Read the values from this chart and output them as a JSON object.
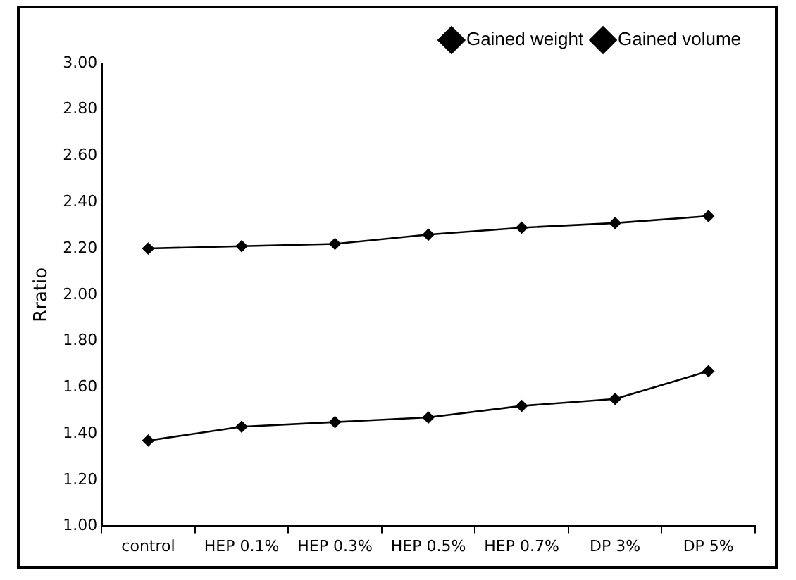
{
  "chart_data": {
    "type": "line",
    "ylabel": "Rratio",
    "categories": [
      "control",
      "HEP 0.1%",
      "HEP 0.3%",
      "HEP 0.5%",
      "HEP 0.7%",
      "DP 3%",
      "DP 5%"
    ],
    "series": [
      {
        "name": "Gained weight",
        "color": "#000000",
        "values": [
          2.2,
          2.21,
          2.22,
          2.26,
          2.29,
          2.31,
          2.34
        ]
      },
      {
        "name": "Gained volume",
        "color": "#000000",
        "values": [
          1.37,
          1.43,
          1.45,
          1.47,
          1.52,
          1.55,
          1.67
        ]
      }
    ],
    "ylim": [
      1,
      3
    ],
    "yticks": [
      {
        "value": 1,
        "label": "1.00"
      },
      {
        "value": 1.2,
        "label": "1.20"
      },
      {
        "value": 1.4,
        "label": "1.40"
      },
      {
        "value": 1.6,
        "label": "1.60"
      },
      {
        "value": 1.8,
        "label": "1.80"
      },
      {
        "value": 2,
        "label": "2.00"
      },
      {
        "value": 2.2,
        "label": "2.20"
      },
      {
        "value": 2.4,
        "label": "2.40"
      },
      {
        "value": 2.6,
        "label": "2.60"
      },
      {
        "value": 2.8,
        "label": "2.80"
      },
      {
        "value": 3,
        "label": "3.00"
      }
    ],
    "grid": false,
    "legend": "top right",
    "marker": "diamond",
    "line_style": "solid"
  }
}
